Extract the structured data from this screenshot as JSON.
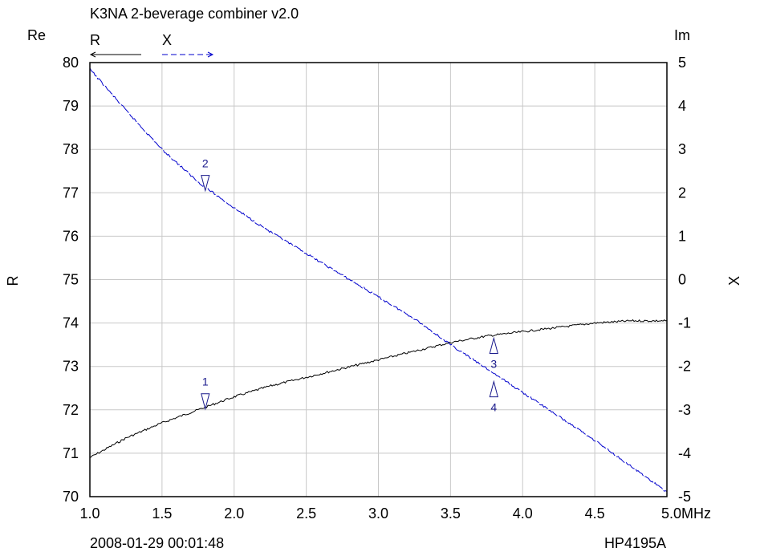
{
  "title": "K3NA 2-beverage combiner v2.0",
  "footer": {
    "timestamp": "2008-01-29 00:01:48",
    "instrument": "HP4195A"
  },
  "chart_data": {
    "type": "line",
    "title": "K3NA 2-beverage combiner v2.0",
    "x_unit": "MHz",
    "xlim": [
      1.0,
      5.0
    ],
    "x_ticks": [
      "1.0",
      "1.5",
      "2.0",
      "2.5",
      "3.0",
      "3.5",
      "4.0",
      "4.5",
      "5.0"
    ],
    "grid": true,
    "left_axis": {
      "header": "Re",
      "label": "R",
      "ylim": [
        70,
        80
      ],
      "ticks": [
        "70",
        "71",
        "72",
        "73",
        "74",
        "75",
        "76",
        "77",
        "78",
        "79",
        "80"
      ]
    },
    "right_axis": {
      "header": "Im",
      "label": "X",
      "ylim": [
        -5,
        5
      ],
      "ticks": [
        "-5",
        "-4",
        "-3",
        "-2",
        "-1",
        "0",
        "1",
        "2",
        "3",
        "4",
        "5"
      ]
    },
    "legend": {
      "placement": "top-left",
      "items": [
        {
          "name": "R",
          "color": "#000000",
          "style": "solid",
          "arrow": "left"
        },
        {
          "name": "X",
          "color": "#0000cc",
          "style": "dashed",
          "arrow": "right"
        }
      ]
    },
    "series": [
      {
        "name": "R",
        "axis": "left",
        "color": "#000000",
        "style": "solid",
        "x": [
          1.0,
          1.25,
          1.5,
          1.75,
          2.0,
          2.25,
          2.5,
          2.75,
          3.0,
          3.25,
          3.5,
          3.75,
          4.0,
          4.25,
          4.5,
          4.75,
          5.0
        ],
        "y": [
          70.9,
          71.35,
          71.7,
          72.0,
          72.3,
          72.55,
          72.75,
          72.95,
          73.15,
          73.35,
          73.55,
          73.7,
          73.8,
          73.9,
          74.0,
          74.05,
          74.05
        ]
      },
      {
        "name": "X",
        "axis": "right",
        "color": "#0000cc",
        "style": "dashed",
        "x": [
          1.0,
          1.25,
          1.5,
          1.75,
          2.0,
          2.25,
          2.5,
          2.75,
          3.0,
          3.25,
          3.5,
          3.75,
          4.0,
          4.25,
          4.5,
          4.75,
          5.0
        ],
        "y": [
          4.85,
          3.9,
          3.0,
          2.25,
          1.65,
          1.1,
          0.6,
          0.1,
          -0.4,
          -0.9,
          -1.5,
          -2.05,
          -2.6,
          -3.15,
          -3.7,
          -4.3,
          -4.9
        ]
      }
    ],
    "markers": [
      {
        "label": "1",
        "x": 1.8,
        "y": 72.02,
        "axis": "left",
        "orientation": "down"
      },
      {
        "label": "2",
        "x": 1.8,
        "y": 2.05,
        "axis": "right",
        "orientation": "down"
      },
      {
        "label": "3",
        "x": 3.8,
        "y": -1.35,
        "axis": "right",
        "orientation": "up"
      },
      {
        "label": "4",
        "x": 3.8,
        "y": -2.35,
        "axis": "right",
        "orientation": "up"
      }
    ]
  }
}
